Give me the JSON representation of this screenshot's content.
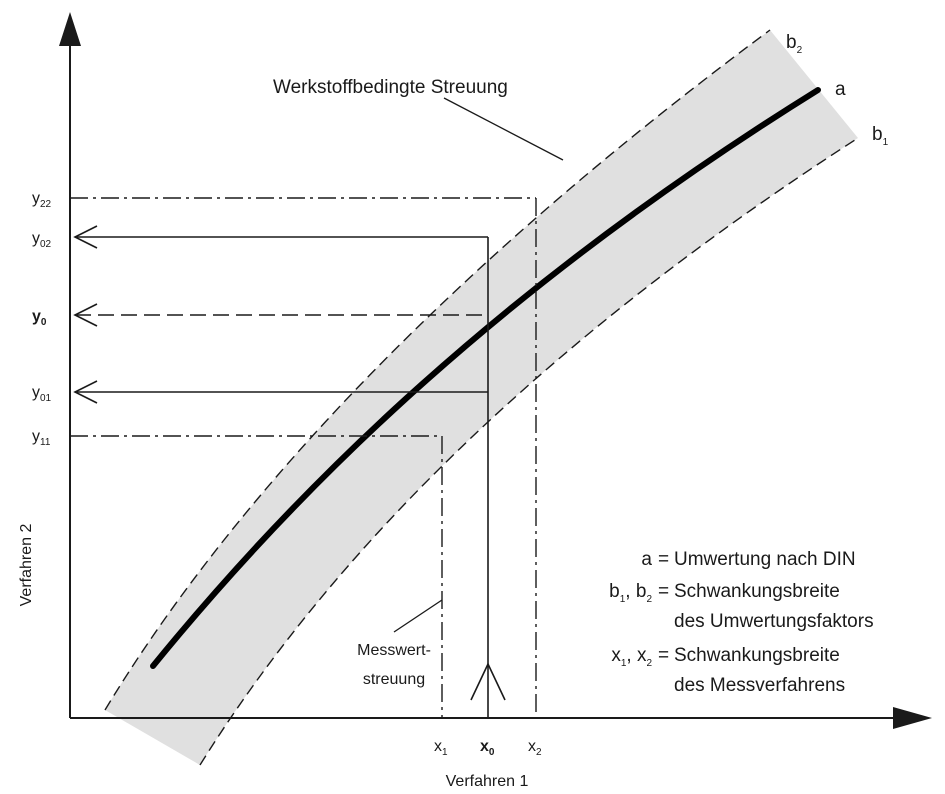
{
  "diagram": {
    "band_label": "Werkstoffbedingte Streuung",
    "curve_a": "a",
    "curve_b2": {
      "base": "b",
      "sub": "2"
    },
    "curve_b1": {
      "base": "b",
      "sub": "1"
    },
    "y_axis_label": "Verfahren 2",
    "x_axis_label": "Verfahren 1",
    "y_ticks": [
      {
        "base": "y",
        "sub": "22",
        "bold": false
      },
      {
        "base": "y",
        "sub": "02",
        "bold": false
      },
      {
        "base": "y",
        "sub": "0",
        "bold": true
      },
      {
        "base": "y",
        "sub": "01",
        "bold": false
      },
      {
        "base": "y",
        "sub": "11",
        "bold": false
      }
    ],
    "x_ticks": [
      {
        "base": "x",
        "sub": "1",
        "bold": false
      },
      {
        "base": "x",
        "sub": "0",
        "bold": true
      },
      {
        "base": "x",
        "sub": "2",
        "bold": false
      }
    ],
    "messwert_line1": "Messwert-",
    "messwert_line2": "streuung",
    "legend": {
      "a_key": "a",
      "a_eq": "=",
      "a_text": "Umwertung nach DIN",
      "b_key_1": "b",
      "b_key_1_sub": "1",
      "b_key_sep": ", ",
      "b_key_2": "b",
      "b_key_2_sub": "2",
      "b_eq": "=",
      "b_text_1": "Schwankungsbreite",
      "b_text_2": "des Umwertungsfaktors",
      "x_key_1": "x",
      "x_key_1_sub": "1",
      "x_key_sep": ", ",
      "x_key_2": "x",
      "x_key_2_sub": "2",
      "x_eq": "=",
      "x_text_1": "Schwankungsbreite",
      "x_text_2": "des Messverfahrens"
    },
    "colors": {
      "band_fill": "#e0e0e0",
      "ink": "#1a1a1a"
    }
  }
}
